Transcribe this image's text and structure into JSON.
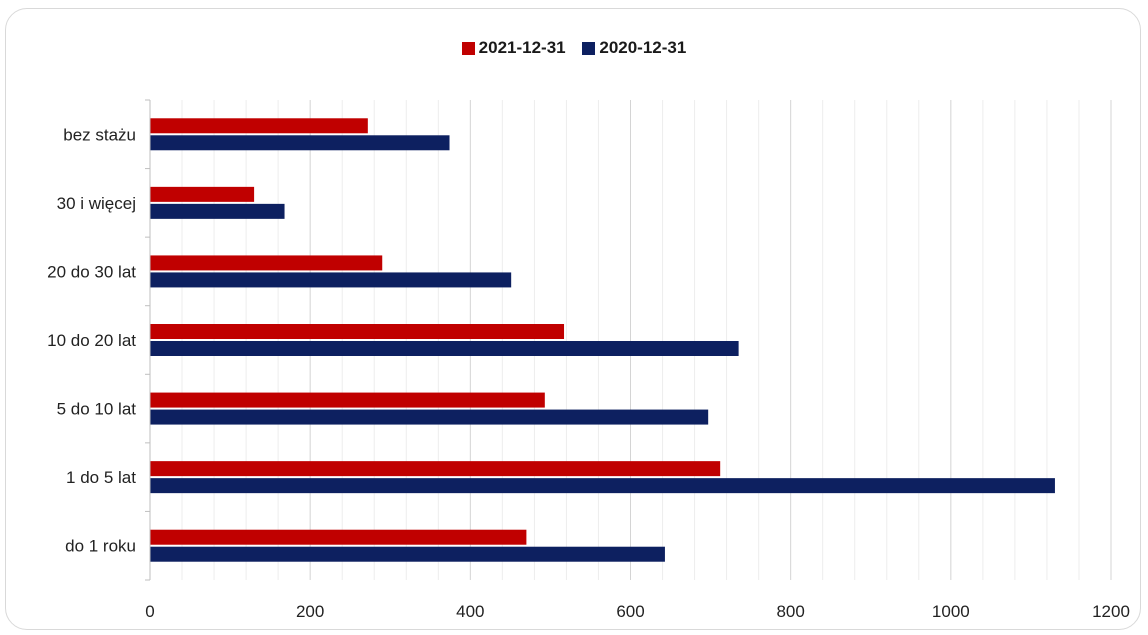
{
  "chart_data": {
    "type": "bar",
    "orientation": "horizontal",
    "categories": [
      "do 1 roku",
      "1 do 5 lat",
      "5 do 10 lat",
      "10 do 20 lat",
      "20 do 30 lat",
      "30 i więcej",
      "bez stażu"
    ],
    "series": [
      {
        "name": "2021-12-31",
        "color": "#c00000",
        "values": [
          470,
          712,
          493,
          517,
          290,
          130,
          272
        ]
      },
      {
        "name": "2020-12-31",
        "color": "#0d2060",
        "values": [
          643,
          1130,
          697,
          735,
          451,
          168,
          374
        ]
      }
    ],
    "xlim": [
      0,
      1200
    ],
    "xticks": [
      0,
      200,
      400,
      600,
      800,
      1000,
      1200
    ],
    "grid": true,
    "legend_position": "top-center"
  }
}
